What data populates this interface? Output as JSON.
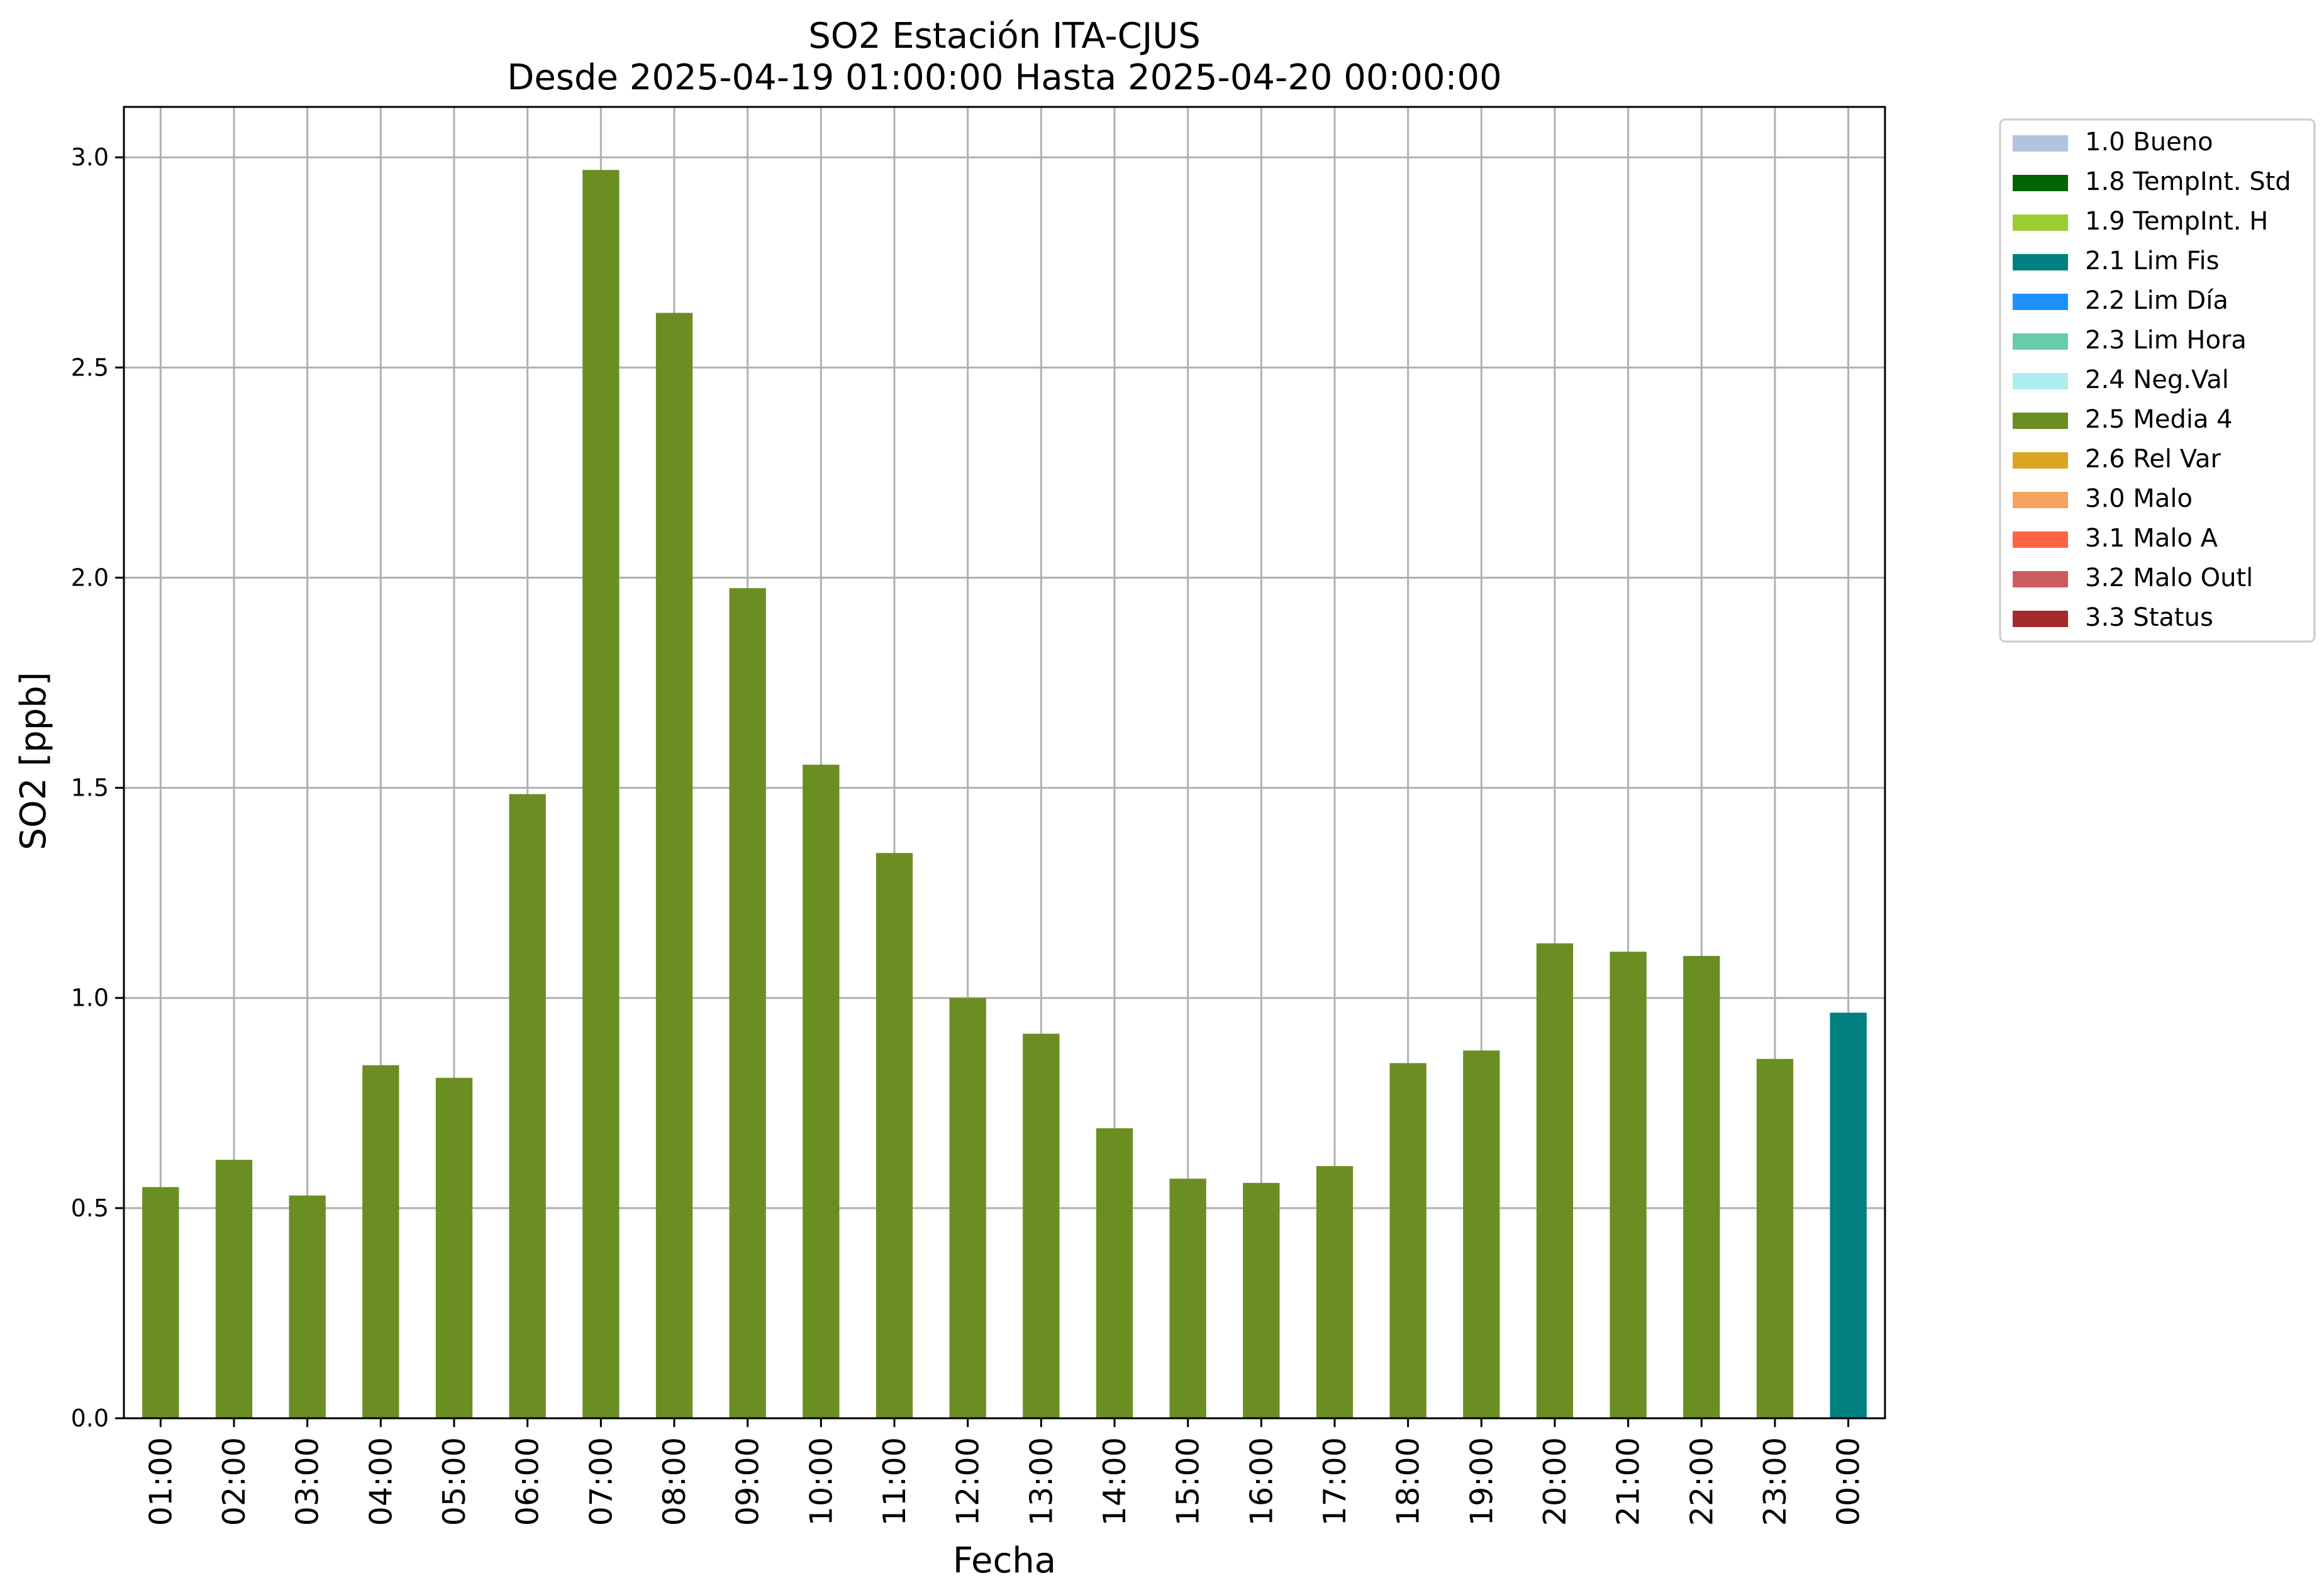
{
  "chart_data": {
    "type": "bar",
    "title": "SO2 Estación ITA-CJUS",
    "subtitle": "Desde 2025-04-19 01:00:00 Hasta 2025-04-20 00:00:00",
    "xlabel": "Fecha",
    "ylabel": "SO2 [ppb]",
    "ylim": [
      0,
      3.12
    ],
    "yticks": [
      "0.0",
      "0.5",
      "1.0",
      "1.5",
      "2.0",
      "2.5",
      "3.0"
    ],
    "grid": true,
    "legend_position": "outside-top-right",
    "categories": [
      "01:00",
      "02:00",
      "03:00",
      "04:00",
      "05:00",
      "06:00",
      "07:00",
      "08:00",
      "09:00",
      "10:00",
      "11:00",
      "12:00",
      "13:00",
      "14:00",
      "15:00",
      "16:00",
      "17:00",
      "18:00",
      "19:00",
      "20:00",
      "21:00",
      "22:00",
      "23:00",
      "00:00"
    ],
    "values": [
      0.55,
      0.615,
      0.53,
      0.84,
      0.81,
      1.485,
      2.97,
      2.63,
      1.975,
      1.555,
      1.345,
      1.0,
      0.915,
      0.69,
      0.57,
      0.56,
      0.6,
      0.845,
      0.875,
      1.13,
      1.11,
      1.1,
      0.855,
      0.965
    ],
    "flags": [
      "2.5",
      "2.5",
      "2.5",
      "2.5",
      "2.5",
      "2.5",
      "2.5",
      "2.5",
      "2.5",
      "2.5",
      "2.5",
      "2.5",
      "2.5",
      "2.5",
      "2.5",
      "2.5",
      "2.5",
      "2.5",
      "2.5",
      "2.5",
      "2.5",
      "2.5",
      "2.5",
      "2.1"
    ],
    "legend": [
      {
        "code": "1.0",
        "label": "1.0 Bueno",
        "color": "#b0c4de"
      },
      {
        "code": "1.8",
        "label": "1.8 TempInt. Std",
        "color": "#006400"
      },
      {
        "code": "1.9",
        "label": "1.9 TempInt. H",
        "color": "#9acd32"
      },
      {
        "code": "2.1",
        "label": "2.1 Lim Fis",
        "color": "#008080"
      },
      {
        "code": "2.2",
        "label": "2.2 Lim Día",
        "color": "#1e90ff"
      },
      {
        "code": "2.3",
        "label": "2.3 Lim Hora",
        "color": "#66cdaa"
      },
      {
        "code": "2.4",
        "label": "2.4 Neg.Val",
        "color": "#afeeee"
      },
      {
        "code": "2.5",
        "label": "2.5 Media 4",
        "color": "#6b8e23"
      },
      {
        "code": "2.6",
        "label": "2.6 Rel Var",
        "color": "#daa520"
      },
      {
        "code": "3.0",
        "label": "3.0 Malo",
        "color": "#f4a460"
      },
      {
        "code": "3.1",
        "label": "3.1 Malo A",
        "color": "#ff6347"
      },
      {
        "code": "3.2",
        "label": "3.2 Malo Outl",
        "color": "#cd5c5c"
      },
      {
        "code": "3.3",
        "label": "3.3 Status",
        "color": "#a52a2a"
      }
    ]
  }
}
